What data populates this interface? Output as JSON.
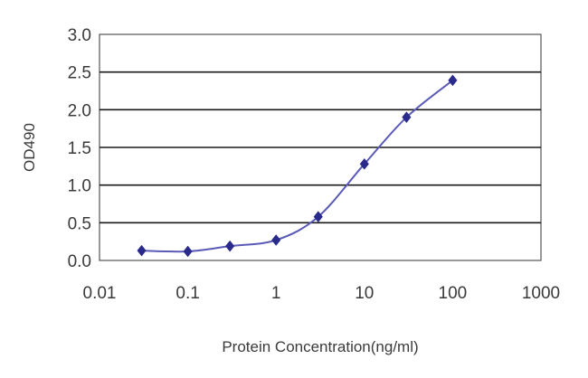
{
  "chart_data": {
    "type": "scatter",
    "title": "",
    "xlabel": "Protein Concentration(ng/ml)",
    "ylabel": "OD490",
    "xscale": "log",
    "xlim": [
      0.01,
      1000
    ],
    "ylim": [
      0,
      3.0
    ],
    "xticks": [
      "0.01",
      "0.1",
      "1",
      "10",
      "100",
      "1000"
    ],
    "yticks": [
      "0.0",
      "0.5",
      "1.0",
      "1.5",
      "2.0",
      "2.5",
      "3.0"
    ],
    "grid": "horizontal",
    "legend": "none",
    "series": [
      {
        "x": [
          0.03,
          0.1,
          0.3,
          1,
          3,
          10,
          30,
          100
        ],
        "y": [
          0.13,
          0.12,
          0.19,
          0.27,
          0.58,
          1.28,
          1.9,
          2.39
        ]
      }
    ],
    "colors": {
      "line": "#5a5ab8",
      "marker": "#2a2a8c",
      "grid": "#1a1a1a"
    }
  }
}
